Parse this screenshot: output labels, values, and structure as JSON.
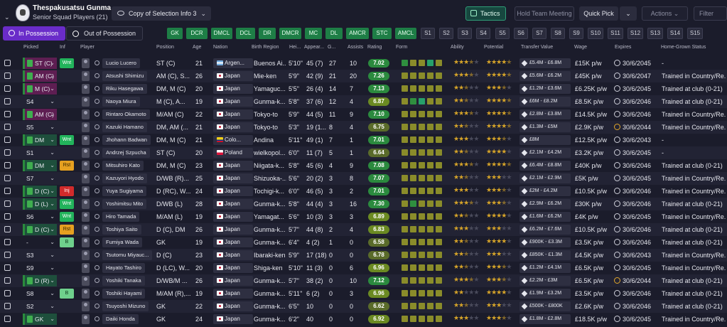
{
  "header": {
    "club_name": "Thespakusatsu Gunma",
    "subtitle": "Senior Squad Players (21)",
    "view_select": "Copy of Selection Info 3",
    "tactics": "Tactics",
    "hold_meeting": "Hold Team Meeting",
    "quick_pick": "Quick Pick",
    "actions": "Actions",
    "filter": "Filter"
  },
  "tabs": {
    "in_possession": "In Possession",
    "out_of_possession": "Out of Possession"
  },
  "role_chips": [
    "GK",
    "DCR",
    "DMCL",
    "DCL",
    "DR",
    "DMCR",
    "MC",
    "DL",
    "AMCR",
    "STC",
    "AMCL"
  ],
  "sub_chips": [
    "S1",
    "S2",
    "S3",
    "S4",
    "S5",
    "S6",
    "S7",
    "S8",
    "S9",
    "S10",
    "S11",
    "S12",
    "S13",
    "S14",
    "S15"
  ],
  "columns": {
    "picked": "Picked",
    "inf": "Inf",
    "player": "Player",
    "position": "Position",
    "age": "Age",
    "nation": "Nation",
    "birth_region": "Birth Region",
    "height": "Hei...",
    "appearances": "Appear...",
    "goals": "G...",
    "assists": "Assists",
    "rating": "Rating",
    "form": "Form",
    "ability": "Ability",
    "potential": "Potential",
    "transfer_value": "Transfer Value",
    "wage": "Wage",
    "expires": "Expires",
    "home_grown": "Home-Grown Status"
  },
  "colors": {
    "form_dark_green": "#2f8f3f",
    "form_olive": "#8a8c2a",
    "form_green": "#56a83a",
    "form_teal": "#27a06a"
  },
  "players": [
    {
      "picked": "ST (C)",
      "pick_type": "role",
      "inf": "Wnt",
      "name": "Lucio Lucero",
      "position": "ST (C)",
      "age": "21",
      "nation": "Argen...",
      "flag": "arg",
      "region": "Buenos Ai...",
      "height": "5'10\"",
      "apps": "45 (7)",
      "goals": "27",
      "assists": "10",
      "rating": "7.02",
      "form": [
        "g",
        "o",
        "o",
        "t",
        "o"
      ],
      "ability": 3.5,
      "potential": 4.5,
      "tv": "£5.4M - £6.8M",
      "wage": "£15K p/w",
      "exp": "30/6/2045",
      "exp_o": false,
      "hg": "-"
    },
    {
      "picked": "AM (C)",
      "pick_type": "role",
      "inf": "",
      "name": "Atsushi Shimizu",
      "position": "AM (C), S...",
      "age": "26",
      "nation": "Japan",
      "flag": "jp",
      "region": "Mie-ken",
      "height": "5'9\"",
      "apps": "42 (9)",
      "goals": "21",
      "assists": "20",
      "rating": "7.26",
      "form": [
        "o",
        "o",
        "o",
        "o",
        "o"
      ],
      "ability": 3.5,
      "potential": 4.5,
      "tv": "£5.6M - £6.2M",
      "wage": "£45K p/w",
      "exp": "30/6/2047",
      "exp_o": false,
      "hg": "Trained in Country/Re..."
    },
    {
      "picked": "M (C)",
      "pick_type": "role",
      "inf": "",
      "name": "Riku Hasegawa",
      "position": "DM, M (C)",
      "age": "20",
      "nation": "Japan",
      "flag": "jp",
      "region": "Yamaguc...",
      "height": "5'5\"",
      "apps": "26 (4)",
      "goals": "14",
      "assists": "7",
      "rating": "7.13",
      "form": [
        "o",
        "o",
        "o",
        "o",
        "o"
      ],
      "ability": 2.5,
      "potential": 3.5,
      "tv": "£1.2M - £3.6M",
      "wage": "£6.25K p/w",
      "exp": "30/6/2045",
      "exp_o": false,
      "hg": "Trained at club (0-21)"
    },
    {
      "picked": "S4",
      "pick_type": "plain",
      "inf": "",
      "name": "Naoya Miura",
      "position": "M (C), A...",
      "age": "19",
      "nation": "Japan",
      "flag": "jp",
      "region": "Gunma-k...",
      "height": "5'8\"",
      "apps": "37 (6)",
      "goals": "12",
      "assists": "4",
      "rating": "6.87",
      "form": [
        "o",
        "g",
        "t",
        "o",
        "o"
      ],
      "ability": 2.5,
      "potential": 4.5,
      "tv": "£6M - £8.2M",
      "wage": "£8.5K p/w",
      "exp": "30/6/2046",
      "exp_o": false,
      "hg": "Trained at club (0-21)"
    },
    {
      "picked": "AM (C)",
      "pick_type": "role",
      "inf": "",
      "name": "Rintaro Okamoto",
      "position": "M/AM (C)",
      "age": "22",
      "nation": "Japan",
      "flag": "jp",
      "region": "Tokyo-to",
      "height": "5'9\"",
      "apps": "44 (5)",
      "goals": "11",
      "assists": "9",
      "rating": "7.10",
      "form": [
        "o",
        "o",
        "o",
        "o",
        "o"
      ],
      "ability": 3.5,
      "potential": 4.5,
      "tv": "£2.8M - £3.8M",
      "wage": "£14.5K p/w",
      "exp": "30/6/2046",
      "exp_o": false,
      "hg": "Trained in Country/Re..."
    },
    {
      "picked": "S5",
      "pick_type": "plain",
      "inf": "",
      "name": "Kazuki Hamano",
      "position": "DM, AM (...",
      "age": "21",
      "nation": "Japan",
      "flag": "jp",
      "region": "Tokyo-to",
      "height": "5'3\"",
      "apps": "19 (1...",
      "goals": "8",
      "assists": "4",
      "rating": "6.75",
      "form": [
        "o",
        "o",
        "o",
        "o",
        "o"
      ],
      "ability": 2.5,
      "potential": 4.5,
      "tv": "£1.3M - £5M",
      "wage": "£2.9K p/w",
      "exp": "30/6/2044",
      "exp_o": true,
      "hg": "Trained in Country/Re..."
    },
    {
      "picked": "DM",
      "pick_type": "role dm",
      "inf": "Wnt",
      "name": "Jhohann Badwan",
      "position": "DM, M (C)",
      "age": "21",
      "nation": "Colo...",
      "flag": "col",
      "region": "Andina",
      "height": "5'11\"",
      "apps": "49 (1)",
      "goals": "7",
      "assists": "1",
      "rating": "7.01",
      "form": [
        "o",
        "o",
        "o",
        "o",
        "o"
      ],
      "ability": 3,
      "potential": 3.5,
      "tv": "£8M",
      "wage": "£12.5K p/w",
      "exp": "30/6/2043",
      "exp_o": false,
      "hg": "-"
    },
    {
      "picked": "S1",
      "pick_type": "plain",
      "inf": "",
      "name": "Andrzej Szpucha",
      "position": "ST (C)",
      "age": "20",
      "nation": "Poland",
      "flag": "pol",
      "region": "wielkopol...",
      "height": "6'0\"",
      "apps": "11 (7)",
      "goals": "5",
      "assists": "1",
      "rating": "6.64",
      "form": [
        "o",
        "o",
        "o",
        "o",
        "o"
      ],
      "ability": 2.5,
      "potential": 4,
      "tv": "£2.1M - £4.2M",
      "wage": "£3.2K p/w",
      "exp": "30/6/2045",
      "exp_o": false,
      "hg": "-"
    },
    {
      "picked": "DM",
      "pick_type": "role dm",
      "inf": "Rst",
      "name": "Mitsuhiro Kato",
      "position": "DM, M (C)",
      "age": "23",
      "nation": "Japan",
      "flag": "jp",
      "region": "Niigata-k...",
      "height": "5'8\"",
      "apps": "45 (6)",
      "goals": "4",
      "assists": "9",
      "rating": "7.08",
      "form": [
        "o",
        "o",
        "o",
        "o",
        "o"
      ],
      "ability": 3.5,
      "potential": 4.5,
      "tv": "£6.4M - £8.8M",
      "wage": "£40K p/w",
      "exp": "30/6/2046",
      "exp_o": false,
      "hg": "Trained at club (0-21)"
    },
    {
      "picked": "S7",
      "pick_type": "plain",
      "inf": "",
      "name": "Kazuyori Hyodo",
      "position": "D/WB (R)...",
      "age": "25",
      "nation": "Japan",
      "flag": "jp",
      "region": "Shizuoka-...",
      "height": "5'6\"",
      "apps": "20 (2)",
      "goals": "3",
      "assists": "8",
      "rating": "7.07",
      "form": [
        "o",
        "o",
        "o",
        "o",
        "o"
      ],
      "ability": 2.5,
      "potential": 3,
      "tv": "£2.1M - £2.9M",
      "wage": "£5K p/w",
      "exp": "30/6/2045",
      "exp_o": false,
      "hg": "Trained in Country/Re..."
    },
    {
      "picked": "D (C)",
      "pick_type": "role dm",
      "inf": "Inj",
      "name": "Yuya Sugiyama",
      "position": "D (RC), W...",
      "age": "24",
      "nation": "Japan",
      "flag": "jp",
      "region": "Tochigi-k...",
      "height": "6'0\"",
      "apps": "46 (5)",
      "goals": "3",
      "assists": "2",
      "rating": "7.01",
      "form": [
        "o",
        "o",
        "o",
        "o",
        "o"
      ],
      "ability": 3,
      "potential": 3.5,
      "tv": "£2M - £4.2M",
      "wage": "£10.5K p/w",
      "exp": "30/6/2046",
      "exp_o": false,
      "hg": "Trained in Country/Re..."
    },
    {
      "picked": "D (L)",
      "pick_type": "role dm",
      "inf": "Wnt",
      "name": "Yoshimitsu Mito",
      "position": "D/WB (L)",
      "age": "28",
      "nation": "Japan",
      "flag": "jp",
      "region": "Gunma-k...",
      "height": "5'8\"",
      "apps": "44 (4)",
      "goals": "3",
      "assists": "16",
      "rating": "7.30",
      "form": [
        "o",
        "g",
        "o",
        "o",
        "o"
      ],
      "ability": 3.5,
      "potential": 3.5,
      "tv": "£2.9M - £6.2M",
      "wage": "£30K p/w",
      "exp": "30/6/2046",
      "exp_o": false,
      "hg": "Trained at club (0-21)"
    },
    {
      "picked": "S6",
      "pick_type": "plain",
      "inf": "Wnt",
      "name": "Hiro Tamada",
      "position": "M/AM (L)",
      "age": "19",
      "nation": "Japan",
      "flag": "jp",
      "region": "Yamagat...",
      "height": "5'6\"",
      "apps": "10 (3)",
      "goals": "3",
      "assists": "3",
      "rating": "6.89",
      "form": [
        "o",
        "o",
        "o",
        "o",
        "o"
      ],
      "ability": 2.5,
      "potential": 4,
      "tv": "£1.6M - £6.2M",
      "wage": "£4K p/w",
      "exp": "30/6/2045",
      "exp_o": false,
      "hg": "Trained in Country/Re..."
    },
    {
      "picked": "D (C)",
      "pick_type": "role dm",
      "inf": "Rst",
      "name": "Toshiya Saito",
      "position": "D (C), DM",
      "age": "26",
      "nation": "Japan",
      "flag": "jp",
      "region": "Gunma-k...",
      "height": "5'7\"",
      "apps": "44 (8)",
      "goals": "2",
      "assists": "4",
      "rating": "6.83",
      "form": [
        "o",
        "o",
        "o",
        "o",
        "o"
      ],
      "ability": 3,
      "potential": 3,
      "tv": "£6.2M - £7.6M",
      "wage": "£10.5K p/w",
      "exp": "30/6/2046",
      "exp_o": false,
      "hg": "Trained at club (0-21)"
    },
    {
      "picked": "-",
      "pick_type": "plain",
      "inf": "B",
      "name": "Fumiya Wada",
      "position": "GK",
      "age": "19",
      "nation": "Japan",
      "flag": "jp",
      "region": "Gunma-k...",
      "height": "6'4\"",
      "apps": "4 (2)",
      "goals": "1",
      "assists": "0",
      "rating": "6.58",
      "form": [
        "o",
        "o",
        "o",
        "o",
        "o"
      ],
      "ability": 2.5,
      "potential": 4,
      "tv": "£900K - £3.3M",
      "wage": "£3.5K p/w",
      "exp": "30/6/2046",
      "exp_o": false,
      "hg": "Trained at club (0-21)"
    },
    {
      "picked": "S3",
      "pick_type": "plain",
      "inf": "",
      "name": "Tsutomu Miyauc...",
      "position": "D (C)",
      "age": "23",
      "nation": "Japan",
      "flag": "jp",
      "region": "Ibaraki-ken",
      "height": "5'9\"",
      "apps": "17 (18)",
      "goals": "0",
      "assists": "0",
      "rating": "6.78",
      "form": [
        "o",
        "o",
        "o",
        "o",
        "o"
      ],
      "ability": 2.5,
      "potential": 3,
      "tv": "£850K - £1.3M",
      "wage": "£4.5K p/w",
      "exp": "30/6/2043",
      "exp_o": false,
      "hg": "Trained in Country/Re..."
    },
    {
      "picked": "S9",
      "pick_type": "plain",
      "inf": "",
      "name": "Hayato Tashiro",
      "position": "D (LC), W...",
      "age": "20",
      "nation": "Japan",
      "flag": "jp",
      "region": "Shiga-ken",
      "height": "5'10\"",
      "apps": "11 (3)",
      "goals": "0",
      "assists": "6",
      "rating": "6.96",
      "form": [
        "o",
        "o",
        "o",
        "o",
        "o"
      ],
      "ability": 2.5,
      "potential": 3.5,
      "tv": "£1.2M - £4.1M",
      "wage": "£6.5K p/w",
      "exp": "30/6/2045",
      "exp_o": false,
      "hg": "Trained in Country/Re..."
    },
    {
      "picked": "D (R)",
      "pick_type": "role dm",
      "inf": "",
      "name": "Yoshiki Tanaka",
      "position": "D/WB/M ...",
      "age": "26",
      "nation": "Japan",
      "flag": "jp",
      "region": "Gunma-k...",
      "height": "5'7\"",
      "apps": "38 (2)",
      "goals": "0",
      "assists": "10",
      "rating": "7.12",
      "form": [
        "o",
        "o",
        "o",
        "o",
        "o"
      ],
      "ability": 3.5,
      "potential": 3.5,
      "tv": "£2.2M - £3M",
      "wage": "£6.5K p/w",
      "exp": "30/6/2044",
      "exp_o": true,
      "hg": "Trained at club (0-21)"
    },
    {
      "picked": "S8",
      "pick_type": "plain",
      "inf": "B",
      "name": "Toshiki Hayami",
      "position": "M/AM (R),...",
      "age": "19",
      "nation": "Japan",
      "flag": "jp",
      "region": "Gunma-k...",
      "height": "5'11\"",
      "apps": "6 (2)",
      "goals": "0",
      "assists": "3",
      "rating": "6.96",
      "form": [
        "o",
        "o",
        "o",
        "o",
        "o"
      ],
      "ability": 2,
      "potential": 4,
      "tv": "£1.9M - £3.2M",
      "wage": "£3.5K p/w",
      "exp": "30/6/2046",
      "exp_o": false,
      "hg": "Trained at club (0-21)"
    },
    {
      "picked": "S2",
      "pick_type": "plain",
      "inf": "",
      "name": "Tsuyoshi Mizuno",
      "position": "GK",
      "age": "22",
      "nation": "Japan",
      "flag": "jp",
      "region": "Gunma-k...",
      "height": "6'5\"",
      "apps": "10",
      "goals": "0",
      "assists": "0",
      "rating": "6.62",
      "form": [
        "o",
        "o",
        "o",
        "o",
        "o"
      ],
      "ability": 2.5,
      "potential": 3,
      "tv": "£500K - £800K",
      "wage": "£2.6K p/w",
      "exp": "30/6/2046",
      "exp_o": false,
      "hg": "Trained at club (0-21)"
    },
    {
      "picked": "GK",
      "pick_type": "role dm",
      "inf": "",
      "name": "Daiki Honda",
      "position": "GK",
      "age": "24",
      "nation": "Japan",
      "flag": "jp",
      "region": "Gunma-k...",
      "height": "6'2\"",
      "apps": "40",
      "goals": "0",
      "assists": "0",
      "rating": "6.92",
      "form": [
        "o",
        "o",
        "o",
        "o",
        "o"
      ],
      "ability": 3,
      "potential": 3.5,
      "tv": "£1.8M - £2.8M",
      "wage": "£18.5K p/w",
      "exp": "30/6/2045",
      "exp_o": false,
      "hg": "Trained in Country/Re..."
    }
  ]
}
